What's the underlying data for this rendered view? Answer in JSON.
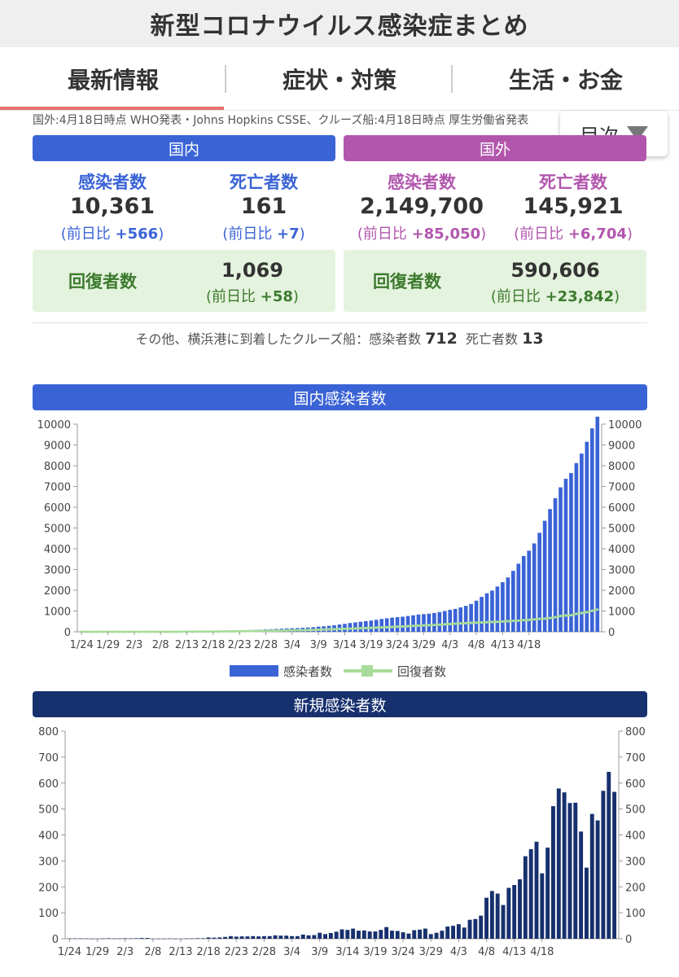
{
  "header": {
    "title": "新型コロナウイルス感染症まとめ"
  },
  "tabs": [
    {
      "label": "最新情報",
      "active": true
    },
    {
      "label": "症状・対策",
      "active": false
    },
    {
      "label": "生活・お金",
      "active": false
    }
  ],
  "source": "国外:4月18日時点 WHO発表・Johns Hopkins CSSE、クルーズ船:4月18日時点 厚生労働省発表",
  "toc": {
    "label": "目次"
  },
  "domestic": {
    "title": "国内",
    "color": "#3a63d6",
    "infected": {
      "label": "感染者数",
      "value": "10,361",
      "diff_prefix": "(前日比 ",
      "diff": "+566",
      "diff_suffix": ")"
    },
    "deaths": {
      "label": "死亡者数",
      "value": "161",
      "diff_prefix": "(前日比 ",
      "diff": "+7",
      "diff_suffix": ")"
    },
    "recovered": {
      "label": "回復者数",
      "value": "1,069",
      "diff_prefix": "(前日比 ",
      "diff": "+58",
      "diff_suffix": ")"
    }
  },
  "overseas": {
    "title": "国外",
    "color": "#b256ad",
    "infected": {
      "label": "感染者数",
      "value": "2,149,700",
      "diff_prefix": "(前日比 ",
      "diff": "+85,050",
      "diff_suffix": ")"
    },
    "deaths": {
      "label": "死亡者数",
      "value": "145,921",
      "diff_prefix": "(前日比 ",
      "diff": "+6,704",
      "diff_suffix": ")"
    },
    "recovered": {
      "label": "回復者数",
      "value": "590,606",
      "diff_prefix": "(前日比 ",
      "diff": "+23,842",
      "diff_suffix": ")"
    }
  },
  "cruise": {
    "text": "その他、横浜港に到着したクルーズ船：感染者数",
    "infected": "712",
    "death_label": "死亡者数",
    "deaths": "13"
  },
  "chart_data": [
    {
      "type": "bar",
      "title": "国内感染者数",
      "title_color": "#3a63d6",
      "ylim": [
        0,
        10000
      ],
      "yticks": [
        0,
        1000,
        2000,
        3000,
        4000,
        5000,
        6000,
        7000,
        8000,
        9000,
        10000
      ],
      "dual_axis": true,
      "x_tick_labels": [
        "1/24",
        "1/29",
        "2/3",
        "2/8",
        "2/13",
        "2/18",
        "2/23",
        "2/28",
        "3/4",
        "3/9",
        "3/14",
        "3/19",
        "3/24",
        "3/29",
        "4/3",
        "4/8",
        "4/13",
        "4/18"
      ],
      "legend_position": "bottom",
      "series": [
        {
          "name": "感染者数",
          "kind": "bar",
          "color": "#3a63d6",
          "values": [
            2,
            2,
            3,
            4,
            4,
            4,
            5,
            7,
            8,
            9,
            11,
            12,
            14,
            17,
            20,
            20,
            20,
            20,
            21,
            21,
            21,
            22,
            23,
            25,
            27,
            32,
            36,
            41,
            48,
            58,
            66,
            75,
            84,
            94,
            103,
            113,
            123,
            136,
            148,
            160,
            170,
            180,
            196,
            209,
            223,
            246,
            264,
            286,
            313,
            349,
            383,
            422,
            453,
            485,
            513,
            541,
            575,
            620,
            651,
            681,
            706,
            726,
            759,
            794,
            833,
            851,
            874,
            905,
            952,
            1002,
            1058,
            1101,
            1174,
            1250,
            1339,
            1497,
            1681,
            1855,
            1985,
            2181,
            2388,
            2617,
            2935,
            3280,
            3654,
            3906,
            4257,
            4768,
            5347,
            5911,
            6434,
            6958,
            7371,
            7645,
            8126,
            8582,
            9152,
            9795,
            10361
          ]
        },
        {
          "name": "回復者数",
          "kind": "line",
          "color": "#a7dc9a",
          "values": [
            0,
            0,
            0,
            0,
            0,
            0,
            0,
            0,
            0,
            0,
            1,
            1,
            1,
            1,
            1,
            1,
            1,
            1,
            1,
            4,
            4,
            6,
            9,
            10,
            12,
            15,
            17,
            18,
            20,
            22,
            25,
            28,
            32,
            35,
            38,
            42,
            46,
            50,
            57,
            64,
            69,
            76,
            80,
            85,
            90,
            101,
            106,
            118,
            123,
            135,
            144,
            150,
            162,
            172,
            180,
            191,
            200,
            212,
            222,
            235,
            245,
            255,
            270,
            285,
            300,
            310,
            320,
            330,
            345,
            359,
            375,
            390,
            405,
            418,
            432,
            440,
            450,
            460,
            472,
            480,
            495,
            510,
            525,
            540,
            560,
            575,
            592,
            622,
            632,
            665,
            700,
            762,
            784,
            799,
            862,
            901,
            944,
            1011,
            1069
          ]
        }
      ]
    },
    {
      "type": "bar",
      "title": "新規感染者数",
      "title_color": "#17306e",
      "ylim": [
        0,
        800
      ],
      "yticks": [
        0,
        100,
        200,
        300,
        400,
        500,
        600,
        700,
        800
      ],
      "dual_axis": true,
      "x_tick_labels": [
        "1/24",
        "1/29",
        "2/3",
        "2/8",
        "2/13",
        "2/18",
        "2/23",
        "2/28",
        "3/4",
        "3/9",
        "3/14",
        "3/19",
        "3/24",
        "3/29",
        "4/3",
        "4/8",
        "4/13",
        "4/18"
      ],
      "series": [
        {
          "name": "新規感染者数",
          "kind": "bar",
          "color": "#17306e",
          "values": [
            1,
            1,
            1,
            1,
            0,
            0,
            1,
            2,
            1,
            1,
            2,
            1,
            2,
            3,
            3,
            0,
            0,
            0,
            1,
            0,
            0,
            1,
            1,
            2,
            2,
            5,
            4,
            5,
            7,
            10,
            8,
            9,
            9,
            10,
            9,
            10,
            10,
            13,
            12,
            12,
            10,
            10,
            16,
            13,
            14,
            23,
            18,
            22,
            27,
            36,
            34,
            39,
            31,
            32,
            28,
            28,
            34,
            45,
            31,
            30,
            25,
            20,
            33,
            35,
            39,
            18,
            23,
            31,
            47,
            50,
            56,
            43,
            73,
            76,
            89,
            158,
            184,
            174,
            130,
            196,
            207,
            229,
            318,
            345,
            374,
            252,
            351,
            511,
            579,
            564,
            523,
            524,
            413,
            274,
            481,
            456,
            570,
            643,
            566
          ]
        }
      ]
    }
  ]
}
